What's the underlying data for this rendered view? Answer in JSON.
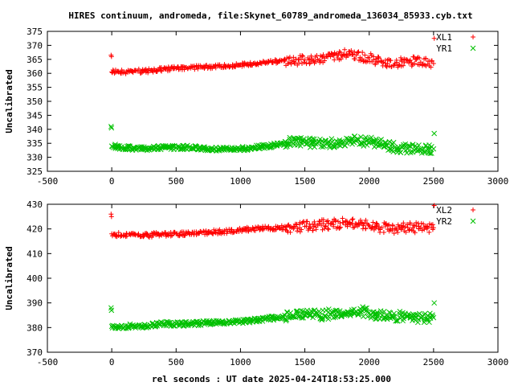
{
  "title": "HIRES continuum, andromeda, file:Skynet_60789_andromeda_136034_85933.cyb.txt",
  "xlabel": "rel seconds : UT date 2025-04-24T18:53:25.000",
  "chart_data": [
    {
      "type": "scatter",
      "ylabel": "Uncalibrated",
      "xlim": [
        -500,
        3000
      ],
      "ylim": [
        325,
        375
      ],
      "xticks": [
        -500,
        0,
        500,
        1000,
        1500,
        2000,
        2500,
        3000
      ],
      "yticks": [
        325,
        330,
        335,
        340,
        345,
        350,
        355,
        360,
        365,
        370,
        375
      ],
      "legend_position": "top-right",
      "series": [
        {
          "name": "XL1",
          "marker": "plus",
          "color": "#ff0000",
          "points": [
            [
              -5,
              366.5
            ],
            [
              -2,
              366.0
            ],
            [
              0,
              360.5
            ],
            [
              100,
              360.5
            ],
            [
              200,
              360.8
            ],
            [
              300,
              361.0
            ],
            [
              400,
              361.5
            ],
            [
              500,
              361.7
            ],
            [
              600,
              362.0
            ],
            [
              700,
              362.3
            ],
            [
              800,
              362.5
            ],
            [
              900,
              362.5
            ],
            [
              1000,
              363.0
            ],
            [
              1100,
              363.5
            ],
            [
              1200,
              364.0
            ],
            [
              1300,
              364.3
            ],
            [
              1400,
              364.5
            ],
            [
              1500,
              364.8
            ],
            [
              1600,
              365.0
            ],
            [
              1700,
              366.0
            ],
            [
              1800,
              366.8
            ],
            [
              1900,
              366.5
            ],
            [
              2000,
              365.5
            ],
            [
              2100,
              364.0
            ],
            [
              2200,
              363.5
            ],
            [
              2300,
              364.5
            ],
            [
              2400,
              364.0
            ],
            [
              2500,
              363.5
            ],
            [
              2505,
              372.5
            ]
          ]
        },
        {
          "name": "YR1",
          "marker": "cross",
          "color": "#00c000",
          "points": [
            [
              -5,
              341.0
            ],
            [
              -2,
              340.5
            ],
            [
              0,
              334.0
            ],
            [
              100,
              333.5
            ],
            [
              200,
              333.0
            ],
            [
              300,
              333.2
            ],
            [
              400,
              333.5
            ],
            [
              500,
              333.5
            ],
            [
              600,
              333.5
            ],
            [
              700,
              333.2
            ],
            [
              800,
              333.0
            ],
            [
              900,
              332.8
            ],
            [
              1000,
              333.0
            ],
            [
              1100,
              333.5
            ],
            [
              1200,
              334.0
            ],
            [
              1300,
              334.5
            ],
            [
              1400,
              335.5
            ],
            [
              1500,
              335.5
            ],
            [
              1600,
              335.0
            ],
            [
              1700,
              335.0
            ],
            [
              1800,
              335.5
            ],
            [
              1900,
              336.0
            ],
            [
              2000,
              335.5
            ],
            [
              2100,
              334.5
            ],
            [
              2200,
              333.5
            ],
            [
              2300,
              333.0
            ],
            [
              2400,
              333.0
            ],
            [
              2500,
              333.0
            ],
            [
              2505,
              338.5
            ]
          ]
        }
      ]
    },
    {
      "type": "scatter",
      "ylabel": "Uncalibrated",
      "xlim": [
        -500,
        3000
      ],
      "ylim": [
        370,
        430
      ],
      "xticks": [
        -500,
        0,
        500,
        1000,
        1500,
        2000,
        2500,
        3000
      ],
      "yticks": [
        370,
        380,
        390,
        400,
        410,
        420,
        430
      ],
      "legend_position": "top-right",
      "series": [
        {
          "name": "XL2",
          "marker": "plus",
          "color": "#ff0000",
          "points": [
            [
              -5,
              426.0
            ],
            [
              -2,
              425.0
            ],
            [
              0,
              418.0
            ],
            [
              100,
              417.5
            ],
            [
              200,
              417.5
            ],
            [
              300,
              417.5
            ],
            [
              400,
              417.8
            ],
            [
              500,
              418.0
            ],
            [
              600,
              418.3
            ],
            [
              700,
              418.5
            ],
            [
              800,
              418.8
            ],
            [
              900,
              419.0
            ],
            [
              1000,
              419.5
            ],
            [
              1100,
              420.0
            ],
            [
              1200,
              420.3
            ],
            [
              1300,
              420.5
            ],
            [
              1400,
              420.5
            ],
            [
              1500,
              421.0
            ],
            [
              1600,
              421.5
            ],
            [
              1700,
              422.0
            ],
            [
              1800,
              422.5
            ],
            [
              1900,
              422.0
            ],
            [
              2000,
              421.5
            ],
            [
              2100,
              420.5
            ],
            [
              2200,
              420.0
            ],
            [
              2300,
              420.5
            ],
            [
              2400,
              420.5
            ],
            [
              2500,
              420.5
            ],
            [
              2505,
              429.5
            ]
          ]
        },
        {
          "name": "YR2",
          "marker": "cross",
          "color": "#00c000",
          "points": [
            [
              -5,
              388.0
            ],
            [
              -2,
              387.0
            ],
            [
              0,
              380.5
            ],
            [
              100,
              380.5
            ],
            [
              200,
              380.5
            ],
            [
              300,
              381.0
            ],
            [
              400,
              381.5
            ],
            [
              500,
              381.5
            ],
            [
              600,
              381.5
            ],
            [
              700,
              381.8
            ],
            [
              800,
              382.0
            ],
            [
              900,
              382.0
            ],
            [
              1000,
              382.5
            ],
            [
              1100,
              383.0
            ],
            [
              1200,
              383.5
            ],
            [
              1300,
              384.0
            ],
            [
              1400,
              384.5
            ],
            [
              1500,
              385.0
            ],
            [
              1600,
              385.0
            ],
            [
              1700,
              385.5
            ],
            [
              1800,
              386.0
            ],
            [
              1900,
              386.5
            ],
            [
              2000,
              386.0
            ],
            [
              2100,
              385.0
            ],
            [
              2200,
              384.5
            ],
            [
              2300,
              384.5
            ],
            [
              2400,
              384.0
            ],
            [
              2500,
              384.0
            ],
            [
              2505,
              390.0
            ]
          ]
        }
      ]
    }
  ]
}
